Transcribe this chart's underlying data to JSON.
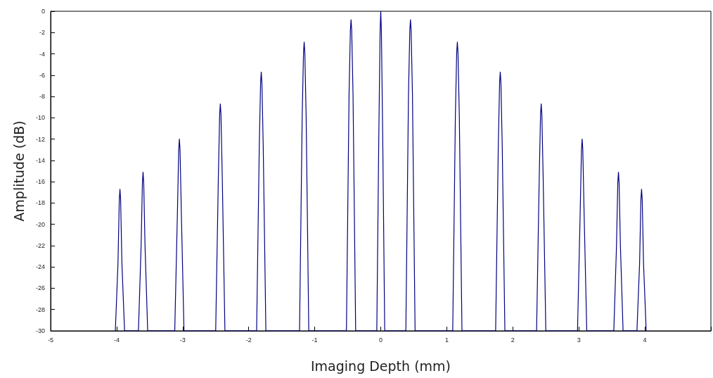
{
  "chart_data": {
    "type": "line",
    "xlabel": "Imaging Depth (mm)",
    "ylabel": "Amplitude (dB)",
    "x": [
      -4.02,
      -3.98,
      -3.96,
      -3.95,
      -3.94,
      -3.92,
      -3.88,
      -3.67,
      -3.63,
      -3.61,
      -3.6,
      -3.59,
      -3.57,
      -3.53,
      -3.12,
      -3.08,
      -3.06,
      -3.05,
      -3.04,
      -3.02,
      -2.98,
      -2.5,
      -2.46,
      -2.44,
      -2.43,
      -2.42,
      -2.4,
      -2.36,
      -1.88,
      -1.84,
      -1.82,
      -1.81,
      -1.8,
      -1.78,
      -1.74,
      -1.23,
      -1.19,
      -1.17,
      -1.16,
      -1.15,
      -1.13,
      -1.09,
      -0.52,
      -0.48,
      -0.46,
      -0.45,
      -0.44,
      -0.42,
      -0.38,
      -0.06,
      -0.03,
      -0.01,
      0,
      0.01,
      0.03,
      0.06,
      0.38,
      0.42,
      0.44,
      0.45,
      0.46,
      0.48,
      0.52,
      1.09,
      1.13,
      1.15,
      1.16,
      1.17,
      1.19,
      1.23,
      1.74,
      1.78,
      1.8,
      1.81,
      1.82,
      1.84,
      1.88,
      2.36,
      2.4,
      2.42,
      2.43,
      2.44,
      2.46,
      2.5,
      2.98,
      3.02,
      3.04,
      3.05,
      3.06,
      3.08,
      3.12,
      3.53,
      3.57,
      3.59,
      3.6,
      3.61,
      3.63,
      3.67,
      3.88,
      3.92,
      3.94,
      3.95,
      3.96,
      3.98,
      4.02
    ],
    "series": [
      {
        "color": "#000080",
        "values": [
          -30,
          -23.7,
          -17.7,
          -16.7,
          -17.7,
          -23.7,
          -30,
          -30,
          -22.1,
          -16.1,
          -15.1,
          -16.1,
          -22.1,
          -30,
          -30,
          -19,
          -13,
          -12,
          -13,
          -19,
          -30,
          -30,
          -15.7,
          -9.7,
          -8.7,
          -9.7,
          -15.7,
          -30,
          -30,
          -12.7,
          -6.7,
          -5.7,
          -6.7,
          -12.7,
          -30,
          -30,
          -9.9,
          -3.9,
          -2.9,
          -3.9,
          -9.9,
          -30,
          -30,
          -7.8,
          -1.8,
          -0.8,
          -1.8,
          -7.8,
          -30,
          -30,
          -12,
          -2,
          0,
          -2,
          -12,
          -30,
          -30,
          -7.8,
          -1.8,
          -0.8,
          -1.8,
          -7.8,
          -30,
          -30,
          -9.9,
          -3.9,
          -2.9,
          -3.9,
          -9.9,
          -30,
          -30,
          -12.7,
          -6.7,
          -5.7,
          -6.7,
          -12.7,
          -30,
          -30,
          -15.7,
          -9.7,
          -8.7,
          -9.7,
          -15.7,
          -30,
          -30,
          -19,
          -13,
          -12,
          -13,
          -19,
          -30,
          -30,
          -22.1,
          -16.1,
          -15.1,
          -16.1,
          -22.1,
          -30,
          -30,
          -23.7,
          -17.7,
          -16.7,
          -17.7,
          -23.7,
          -30
        ]
      }
    ],
    "xlim": [
      -5,
      5
    ],
    "xticks": [
      -5,
      -4,
      -3,
      -2,
      -1,
      0,
      1,
      2,
      3,
      4,
      {
        "value": 5,
        "label": null
      }
    ],
    "ylim": [
      -30,
      0
    ],
    "yticks": [
      -30,
      -28,
      -26,
      -24,
      -22,
      -20,
      -18,
      -16,
      -14,
      -12,
      -10,
      -8,
      -6,
      -4,
      -2,
      0
    ],
    "grid": false,
    "marker": "none",
    "line_style": "solid"
  }
}
